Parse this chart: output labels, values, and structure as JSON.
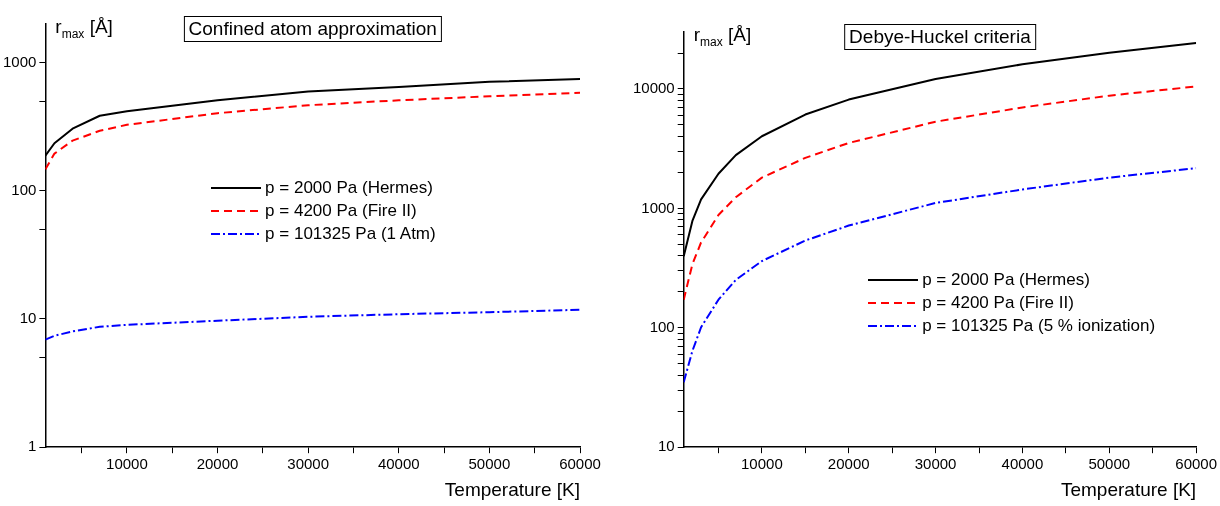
{
  "chart_data": [
    {
      "type": "line",
      "title": "Confined atom approximation",
      "xlabel": "Temperature [K]",
      "ylabel": "r$_{max}$ [Å]",
      "log": "y",
      "grid": false,
      "legend": "right",
      "marker": "none",
      "x": [
        1000,
        2000,
        4000,
        7000,
        10000,
        20000,
        30000,
        40000,
        50000,
        60000
      ],
      "xlim": [
        1000,
        60000
      ],
      "xticks": [
        {
          "value": 5000,
          "label": null
        },
        10000,
        {
          "value": 15000,
          "label": null
        },
        20000,
        {
          "value": 25000,
          "label": null
        },
        30000,
        {
          "value": 35000,
          "label": null
        },
        40000,
        {
          "value": 45000,
          "label": null
        },
        50000,
        {
          "value": 55000,
          "label": null
        },
        60000
      ],
      "ylim": [
        1,
        2000
      ],
      "yticks": [
        1,
        {
          "value": 5,
          "label": null
        },
        10,
        {
          "value": 50,
          "label": null
        },
        100,
        {
          "value": 500,
          "label": null
        },
        1000
      ],
      "series": [
        {
          "name": "p = 2000 Pa (Hermes)",
          "color": "#000000",
          "line_style": "solid",
          "values": [
            188,
            235,
            305,
            385,
            418,
            508,
            594,
            646,
            708,
            745
          ]
        },
        {
          "name": "p = 4200 Pa (Fire II)",
          "color": "#ff0000",
          "line_style": "dashed",
          "values": [
            147,
            195,
            246,
            294,
            327,
            403,
            465,
            508,
            546,
            582
          ]
        },
        {
          "name": "p = 101325 Pa (1 Atm)",
          "color": "#0000ff",
          "line_style": "dashdot",
          "values": [
            6.9,
            7.4,
            8.0,
            8.7,
            9.0,
            9.7,
            10.4,
            10.9,
            11.3,
            11.8
          ]
        }
      ]
    },
    {
      "type": "line",
      "title": "Debye-Huckel criteria",
      "xlabel": "Temperature [K]",
      "ylabel": "r$_{max}$ [Å]",
      "log": "y",
      "grid": false,
      "legend": "bottom right",
      "marker": "none",
      "x": [
        1000,
        2000,
        3000,
        5000,
        7000,
        10000,
        15000,
        20000,
        30000,
        40000,
        50000,
        60000
      ],
      "xlim": [
        1000,
        60000
      ],
      "xticks": [
        {
          "value": 5000,
          "label": null
        },
        10000,
        {
          "value": 15000,
          "label": null
        },
        20000,
        {
          "value": 25000,
          "label": null
        },
        30000,
        {
          "value": 35000,
          "label": null
        },
        40000,
        {
          "value": 45000,
          "label": null
        },
        50000,
        {
          "value": 55000,
          "label": null
        },
        60000
      ],
      "ylim": [
        10,
        30000
      ],
      "yticks": [
        10,
        {
          "value": 20,
          "label": null
        },
        {
          "value": 30,
          "label": null
        },
        {
          "value": 40,
          "label": null
        },
        {
          "value": 50,
          "label": null
        },
        {
          "value": 60,
          "label": null
        },
        {
          "value": 70,
          "label": null
        },
        {
          "value": 80,
          "label": null
        },
        {
          "value": 90,
          "label": null
        },
        100,
        {
          "value": 200,
          "label": null
        },
        {
          "value": 300,
          "label": null
        },
        {
          "value": 400,
          "label": null
        },
        {
          "value": 500,
          "label": null
        },
        {
          "value": 600,
          "label": null
        },
        {
          "value": 700,
          "label": null
        },
        {
          "value": 800,
          "label": null
        },
        {
          "value": 900,
          "label": null
        },
        1000,
        {
          "value": 2000,
          "label": null
        },
        {
          "value": 3000,
          "label": null
        },
        {
          "value": 4000,
          "label": null
        },
        {
          "value": 5000,
          "label": null
        },
        {
          "value": 6000,
          "label": null
        },
        {
          "value": 7000,
          "label": null
        },
        {
          "value": 8000,
          "label": null
        },
        {
          "value": 9000,
          "label": null
        },
        10000,
        {
          "value": 20000,
          "label": null
        }
      ],
      "series": [
        {
          "name": "p = 2000 Pa (Hermes)",
          "color": "#000000",
          "line_style": "solid",
          "values": [
            397,
            785,
            1190,
            1950,
            2790,
            4020,
            6110,
            8150,
            12100,
            16100,
            20100,
            24300
          ]
        },
        {
          "name": "p = 4200 Pa (Fire II)",
          "color": "#ff0000",
          "line_style": "dashed",
          "values": [
            172,
            341,
            518,
            881,
            1240,
            1810,
            2650,
            3530,
            5320,
            7000,
            8790,
            10500
          ]
        },
        {
          "name": "p = 101325 Pa (5 % ionization)",
          "color": "#0000ff",
          "line_style": "dashdot",
          "values": [
            35,
            64,
            101,
            172,
            252,
            362,
            538,
            718,
            1110,
            1440,
            1810,
            2170
          ]
        }
      ]
    }
  ]
}
